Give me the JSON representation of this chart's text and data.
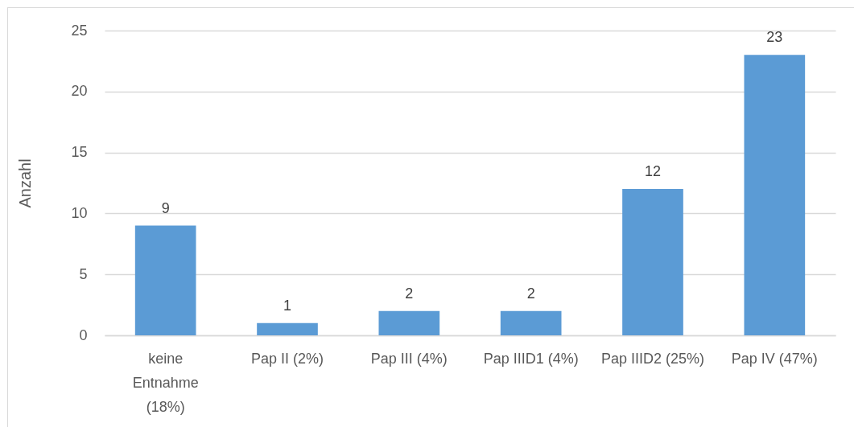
{
  "chart_data": {
    "type": "bar",
    "ylabel": "Anzahl",
    "categories": [
      "keine Entnahme (18%)",
      "Pap II (2%)",
      "Pap III (4%)",
      "Pap IIID1 (4%)",
      "Pap IIID2 (25%)",
      "Pap IV (47%)"
    ],
    "values": [
      9,
      1,
      2,
      2,
      12,
      23
    ],
    "color": "#5b9bd5",
    "ylim": [
      0,
      25
    ],
    "yticks": [
      0,
      5,
      10,
      15,
      20,
      25
    ],
    "grid": "y",
    "data_labels": true
  }
}
